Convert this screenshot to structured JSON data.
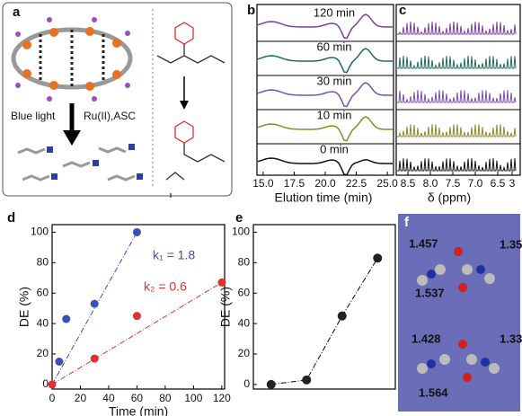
{
  "panel_a": {
    "label": "a",
    "arrow_left": "Blue light",
    "arrow_right": "Ru(II),ASC"
  },
  "panel_b": {
    "label": "b",
    "xlabel": "Elution time (min)",
    "xlim": [
      14.5,
      25.5
    ],
    "xticks": [
      {
        "value": 15,
        "label": "15.0"
      },
      17.5,
      {
        "value": 20,
        "label": "20.0"
      },
      22.5,
      {
        "value": 25,
        "label": "25.0"
      }
    ],
    "traces": [
      {
        "name": "120 min",
        "color": "#7b3f9e"
      },
      {
        "name": "60 min",
        "color": "#1f6b5a"
      },
      {
        "name": "30 min",
        "color": "#7b4fb0"
      },
      {
        "name": "10 min",
        "color": "#8a8a2a"
      },
      {
        "name": "0 min",
        "color": "#111111"
      }
    ]
  },
  "panel_c": {
    "label": "c",
    "xlabel": "δ (ppm)",
    "xticks": [
      8.5,
      {
        "value": 8,
        "label": "8.0"
      },
      7.5,
      {
        "value": 7,
        "label": "7.0"
      },
      6.5,
      3
    ]
  },
  "chart_data": [
    {
      "type": "scatter",
      "label": "d",
      "xlabel": "Time (min)",
      "ylabel": "DE (%)",
      "xlim": [
        0,
        122
      ],
      "ylim": [
        -3,
        105
      ],
      "xticks": [
        0,
        20,
        40,
        60,
        80,
        100,
        120
      ],
      "yticks": [
        0,
        20,
        40,
        60,
        80,
        100
      ],
      "series": [
        {
          "name": "k₁ = 1.8",
          "color": "#3b4fb8",
          "x": [
            5,
            10,
            30,
            60
          ],
          "values": [
            15,
            43,
            53,
            100
          ]
        },
        {
          "name": "k₂ = 0.6",
          "color": "#e03030",
          "x": [
            0,
            30,
            60,
            120
          ],
          "values": [
            0,
            17,
            45,
            67
          ]
        }
      ]
    },
    {
      "type": "scatter",
      "label": "e",
      "ylabel": "DE (%)",
      "ylim": [
        -3,
        105
      ],
      "yticks": [
        0,
        20,
        40,
        60,
        80,
        100
      ],
      "categories": [
        null,
        null,
        null,
        null
      ],
      "values": [
        0,
        3,
        45,
        83
      ],
      "color": "#222222"
    }
  ],
  "panel_f": {
    "label": "f",
    "distances": [
      1.457,
      1.35,
      1.537,
      1.428,
      1.33,
      1.564
    ]
  }
}
